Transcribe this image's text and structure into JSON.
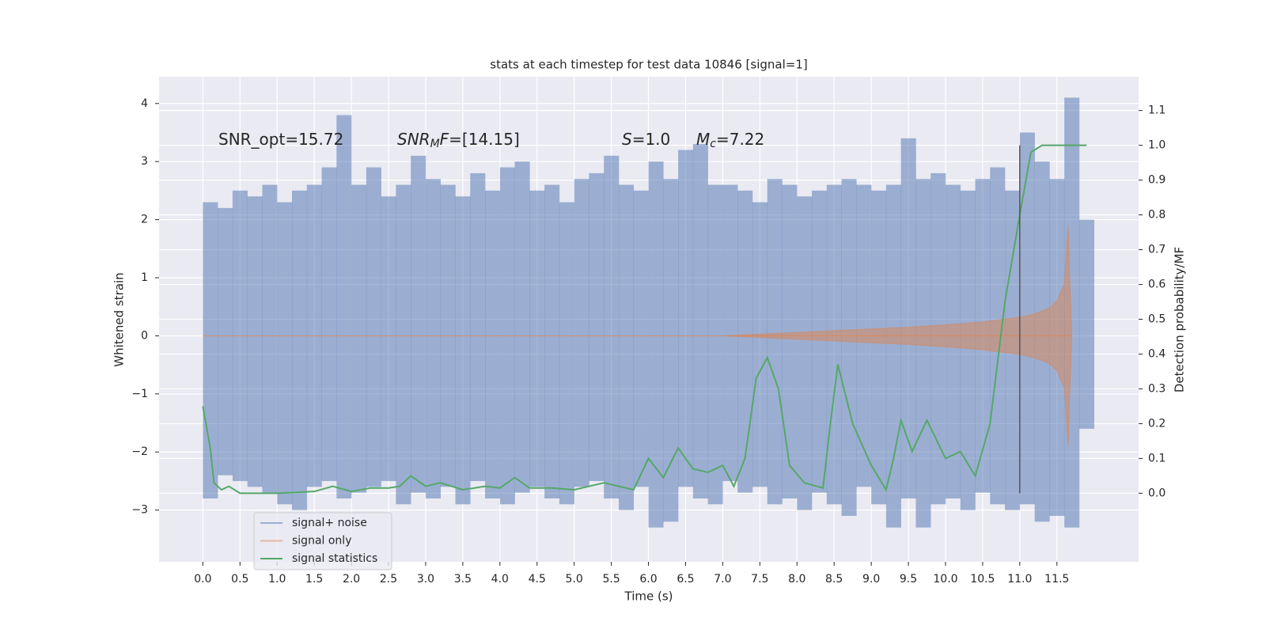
{
  "chart_data": {
    "type": "line",
    "title": "stats at each timestep for test data 10846 [signal=1]",
    "xlabel": "Time (s)",
    "ylabel": "Whitened strain",
    "y2label": "Detection probability/MF",
    "xlim": [
      -0.59,
      12.6
    ],
    "ylim": [
      -3.89,
      4.46
    ],
    "y2lim": [
      -0.197,
      1.197
    ],
    "xticks": [
      {
        "value": 0,
        "label": "0.0"
      },
      0.5,
      {
        "value": 1,
        "label": "1.0"
      },
      1.5,
      {
        "value": 2,
        "label": "2.0"
      },
      2.5,
      {
        "value": 3,
        "label": "3.0"
      },
      3.5,
      {
        "value": 4,
        "label": "4.0"
      },
      4.5,
      {
        "value": 5,
        "label": "5.0"
      },
      5.5,
      {
        "value": 6,
        "label": "6.0"
      },
      6.5,
      {
        "value": 7,
        "label": "7.0"
      },
      7.5,
      {
        "value": 8,
        "label": "8.0"
      },
      8.5,
      {
        "value": 9,
        "label": "9.0"
      },
      9.5,
      {
        "value": 10,
        "label": "10.0"
      },
      10.5,
      {
        "value": 11,
        "label": "11.0"
      },
      11.5
    ],
    "yticks": [
      {
        "value": -3,
        "label": "−3"
      },
      {
        "value": -2,
        "label": "−2"
      },
      {
        "value": -1,
        "label": "−1"
      },
      0,
      1,
      2,
      3,
      4
    ],
    "y2ticks": [
      {
        "value": 0,
        "label": "0.0"
      },
      0.1,
      0.2,
      0.3,
      0.4,
      0.5,
      0.6,
      0.7,
      0.8,
      0.9,
      {
        "value": 1,
        "label": "1.0"
      },
      1.1
    ],
    "grid": true,
    "legend": "lower left",
    "background": "#eaeaf2",
    "annotations": [
      [
        {
          "text": "SNR_opt=15.72"
        }
      ],
      [
        {
          "text": "SNR",
          "italic": true
        },
        {
          "text": "M",
          "italic": true,
          "sub": true
        },
        {
          "text": "F",
          "italic": true
        },
        {
          "text": "=[14.15]"
        }
      ],
      [
        {
          "text": "S",
          "italic": true
        },
        {
          "text": "=1.0"
        }
      ],
      [
        {
          "text": "M",
          "italic": true
        },
        {
          "text": "c",
          "italic": true,
          "sub": true
        },
        {
          "text": "=7.22"
        }
      ]
    ],
    "vline": {
      "x": 11.0,
      "y2range": [
        0.0,
        1.0
      ],
      "color": "#555555"
    },
    "series": [
      {
        "name": "signal+ noise",
        "color": "#4c72b0",
        "alpha": 0.5,
        "x": [
          0,
          0.2,
          0.4,
          0.6,
          0.8,
          1,
          1.2,
          1.4,
          1.6,
          1.8,
          2,
          2.2,
          2.4,
          2.6,
          2.8,
          3,
          3.2,
          3.4,
          3.6,
          3.8,
          4,
          4.2,
          4.4,
          4.6,
          4.8,
          5,
          5.2,
          5.4,
          5.6,
          5.8,
          6,
          6.2,
          6.4,
          6.6,
          6.8,
          7,
          7.2,
          7.4,
          7.6,
          7.8,
          8,
          8.2,
          8.4,
          8.6,
          8.8,
          9,
          9.2,
          9.4,
          9.6,
          9.8,
          10,
          10.2,
          10.4,
          10.6,
          10.8,
          11,
          11.2,
          11.4,
          11.6,
          11.8
        ],
        "upper": [
          2.3,
          2.2,
          2.5,
          2.4,
          2.6,
          2.3,
          2.5,
          2.6,
          2.9,
          3.8,
          2.6,
          2.9,
          2.4,
          2.6,
          3.1,
          2.7,
          2.6,
          2.4,
          2.8,
          2.5,
          2.9,
          3.0,
          2.5,
          2.6,
          2.3,
          2.7,
          2.8,
          3.1,
          2.6,
          2.5,
          3.0,
          2.7,
          3.2,
          3.3,
          2.6,
          2.6,
          2.5,
          2.3,
          2.7,
          2.6,
          2.4,
          2.5,
          2.6,
          2.7,
          2.6,
          2.5,
          2.6,
          3.4,
          2.7,
          2.8,
          2.6,
          2.5,
          2.7,
          2.9,
          2.5,
          3.5,
          3.0,
          2.7,
          4.1,
          2.0
        ],
        "lower": [
          -2.8,
          -2.4,
          -2.5,
          -2.6,
          -2.7,
          -2.9,
          -3.0,
          -2.6,
          -2.5,
          -2.8,
          -2.7,
          -2.6,
          -2.5,
          -2.9,
          -2.7,
          -2.8,
          -2.6,
          -2.9,
          -2.5,
          -2.8,
          -2.9,
          -2.7,
          -2.6,
          -2.8,
          -2.9,
          -2.6,
          -2.5,
          -2.8,
          -3.0,
          -2.6,
          -3.3,
          -3.2,
          -2.6,
          -2.8,
          -2.9,
          -2.5,
          -2.7,
          -2.6,
          -2.9,
          -2.8,
          -3.0,
          -2.7,
          -2.9,
          -3.1,
          -2.6,
          -2.9,
          -3.3,
          -2.8,
          -3.3,
          -2.9,
          -2.8,
          -3.0,
          -2.7,
          -2.9,
          -3.0,
          -2.9,
          -3.2,
          -3.1,
          -3.3,
          -1.6
        ]
      },
      {
        "name": "signal only",
        "color": "#dd8452",
        "alpha": 0.5,
        "x": [
          0,
          7.0,
          7.5,
          8,
          8.5,
          9,
          9.5,
          10,
          10.5,
          11,
          11.2,
          11.4,
          11.5,
          11.6,
          11.65,
          11.7
        ],
        "values": [
          0,
          0,
          0.03,
          0.06,
          0.09,
          0.12,
          0.15,
          0.19,
          0.24,
          0.32,
          0.38,
          0.48,
          0.6,
          0.9,
          1.9,
          0
        ]
      },
      {
        "name": "signal statistics",
        "color": "#55a868",
        "axis": "y2",
        "x": [
          0,
          0.1,
          0.15,
          0.25,
          0.35,
          0.5,
          1.0,
          1.5,
          1.75,
          2.0,
          2.25,
          2.5,
          2.65,
          2.8,
          3.0,
          3.2,
          3.5,
          3.8,
          4.0,
          4.2,
          4.4,
          4.7,
          5.0,
          5.4,
          5.8,
          6.0,
          6.2,
          6.4,
          6.6,
          6.8,
          7.0,
          7.15,
          7.3,
          7.45,
          7.6,
          7.75,
          7.9,
          8.1,
          8.35,
          8.45,
          8.55,
          8.75,
          9.0,
          9.2,
          9.3,
          9.4,
          9.55,
          9.75,
          10.0,
          10.2,
          10.4,
          10.6,
          10.8,
          11.0,
          11.15,
          11.3,
          11.9
        ],
        "values": [
          0.25,
          0.13,
          0.03,
          0.01,
          0.02,
          0,
          0,
          0.005,
          0.02,
          0.005,
          0.015,
          0.015,
          0.02,
          0.05,
          0.02,
          0.03,
          0.01,
          0.02,
          0.015,
          0.045,
          0.015,
          0.015,
          0.01,
          0.03,
          0.01,
          0.1,
          0.045,
          0.13,
          0.07,
          0.06,
          0.08,
          0.02,
          0.1,
          0.33,
          0.39,
          0.3,
          0.08,
          0.03,
          0.015,
          0.2,
          0.37,
          0.2,
          0.08,
          0.01,
          0.1,
          0.21,
          0.12,
          0.21,
          0.1,
          0.12,
          0.05,
          0.2,
          0.55,
          0.8,
          0.98,
          1.0,
          1.0
        ]
      }
    ]
  }
}
